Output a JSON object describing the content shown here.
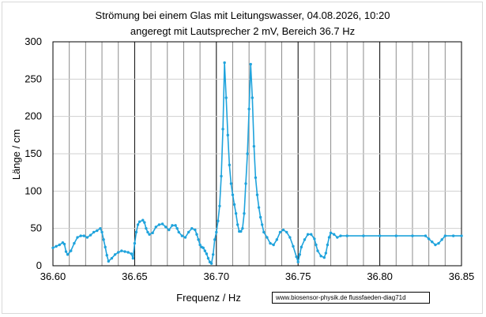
{
  "chart_data": {
    "type": "line",
    "title_line1": "Strömung bei einem Glas mit  Leitungswasser, 04.08.2026, 10:20",
    "title_line2": "angeregt mit Lautsprecher 2 mV, Bereich 36.7 Hz",
    "xlabel": "Frequenz / Hz",
    "ylabel": "Länge / cm",
    "xlim": [
      36.6,
      36.85
    ],
    "ylim": [
      0,
      300
    ],
    "x_ticks": [
      "36.60",
      "36.65",
      "36.70",
      "36.75",
      "36.80",
      "36.85"
    ],
    "y_ticks": [
      "0",
      "50",
      "100",
      "150",
      "200",
      "250",
      "300"
    ],
    "grid": "vertical every 0.01 Hz, horizontal every 50",
    "series_color": "#1fa3dc",
    "source_label": "www.biosensor-physik.de  flussfaeden-diag71d",
    "points": [
      [
        36.6,
        24
      ],
      [
        36.602,
        26
      ],
      [
        36.604,
        28
      ],
      [
        36.606,
        31
      ],
      [
        36.607,
        29
      ],
      [
        36.608,
        19
      ],
      [
        36.609,
        15
      ],
      [
        36.611,
        20
      ],
      [
        36.613,
        30
      ],
      [
        36.615,
        38
      ],
      [
        36.617,
        40
      ],
      [
        36.619,
        40
      ],
      [
        36.621,
        38
      ],
      [
        36.623,
        41
      ],
      [
        36.625,
        45
      ],
      [
        36.627,
        47
      ],
      [
        36.629,
        50
      ],
      [
        36.63,
        45
      ],
      [
        36.631,
        35
      ],
      [
        36.632,
        25
      ],
      [
        36.633,
        14
      ],
      [
        36.634,
        6
      ],
      [
        36.636,
        10
      ],
      [
        36.638,
        15
      ],
      [
        36.64,
        18
      ],
      [
        36.642,
        20
      ],
      [
        36.644,
        19
      ],
      [
        36.646,
        18
      ],
      [
        36.648,
        16
      ],
      [
        36.649,
        10
      ],
      [
        36.65,
        30
      ],
      [
        36.651,
        45
      ],
      [
        36.652,
        55
      ],
      [
        36.653,
        59
      ],
      [
        36.655,
        61
      ],
      [
        36.656,
        58
      ],
      [
        36.657,
        50
      ],
      [
        36.658,
        45
      ],
      [
        36.659,
        42
      ],
      [
        36.661,
        44
      ],
      [
        36.663,
        52
      ],
      [
        36.665,
        55
      ],
      [
        36.667,
        56
      ],
      [
        36.669,
        52
      ],
      [
        36.671,
        48
      ],
      [
        36.673,
        54
      ],
      [
        36.675,
        54
      ],
      [
        36.676,
        50
      ],
      [
        36.677,
        45
      ],
      [
        36.679,
        40
      ],
      [
        36.681,
        38
      ],
      [
        36.683,
        45
      ],
      [
        36.685,
        50
      ],
      [
        36.687,
        48
      ],
      [
        36.688,
        42
      ],
      [
        36.689,
        35
      ],
      [
        36.69,
        28
      ],
      [
        36.691,
        25
      ],
      [
        36.692,
        24
      ],
      [
        36.693,
        20
      ],
      [
        36.694,
        16
      ],
      [
        36.695,
        10
      ],
      [
        36.696,
        5
      ],
      [
        36.697,
        3
      ],
      [
        36.698,
        15
      ],
      [
        36.699,
        35
      ],
      [
        36.7,
        45
      ],
      [
        36.701,
        60
      ],
      [
        36.702,
        80
      ],
      [
        36.703,
        120
      ],
      [
        36.704,
        183
      ],
      [
        36.705,
        272
      ],
      [
        36.706,
        225
      ],
      [
        36.707,
        175
      ],
      [
        36.708,
        135
      ],
      [
        36.709,
        110
      ],
      [
        36.71,
        95
      ],
      [
        36.711,
        82
      ],
      [
        36.712,
        70
      ],
      [
        36.713,
        55
      ],
      [
        36.714,
        46
      ],
      [
        36.715,
        46
      ],
      [
        36.716,
        50
      ],
      [
        36.717,
        70
      ],
      [
        36.718,
        110
      ],
      [
        36.719,
        150
      ],
      [
        36.72,
        210
      ],
      [
        36.721,
        270
      ],
      [
        36.722,
        225
      ],
      [
        36.723,
        160
      ],
      [
        36.724,
        118
      ],
      [
        36.725,
        95
      ],
      [
        36.726,
        78
      ],
      [
        36.727,
        65
      ],
      [
        36.728,
        55
      ],
      [
        36.729,
        45
      ],
      [
        36.731,
        38
      ],
      [
        36.733,
        30
      ],
      [
        36.735,
        28
      ],
      [
        36.737,
        35
      ],
      [
        36.739,
        45
      ],
      [
        36.741,
        48
      ],
      [
        36.743,
        45
      ],
      [
        36.745,
        38
      ],
      [
        36.747,
        26
      ],
      [
        36.749,
        12
      ],
      [
        36.75,
        5
      ],
      [
        36.751,
        15
      ],
      [
        36.752,
        25
      ],
      [
        36.754,
        35
      ],
      [
        36.756,
        42
      ],
      [
        36.758,
        42
      ],
      [
        36.76,
        36
      ],
      [
        36.761,
        28
      ],
      [
        36.762,
        20
      ],
      [
        36.764,
        13
      ],
      [
        36.766,
        11
      ],
      [
        36.767,
        17
      ],
      [
        36.768,
        28
      ],
      [
        36.769,
        38
      ],
      [
        36.77,
        44
      ],
      [
        36.772,
        42
      ],
      [
        36.774,
        38
      ],
      [
        36.776,
        40
      ],
      [
        36.78,
        40
      ],
      [
        36.79,
        40
      ],
      [
        36.8,
        40
      ],
      [
        36.81,
        40
      ],
      [
        36.82,
        40
      ],
      [
        36.828,
        40
      ],
      [
        36.83,
        36
      ],
      [
        36.832,
        32
      ],
      [
        36.834,
        28
      ],
      [
        36.836,
        30
      ],
      [
        36.838,
        35
      ],
      [
        36.84,
        40
      ],
      [
        36.845,
        40
      ],
      [
        36.85,
        40
      ]
    ]
  }
}
